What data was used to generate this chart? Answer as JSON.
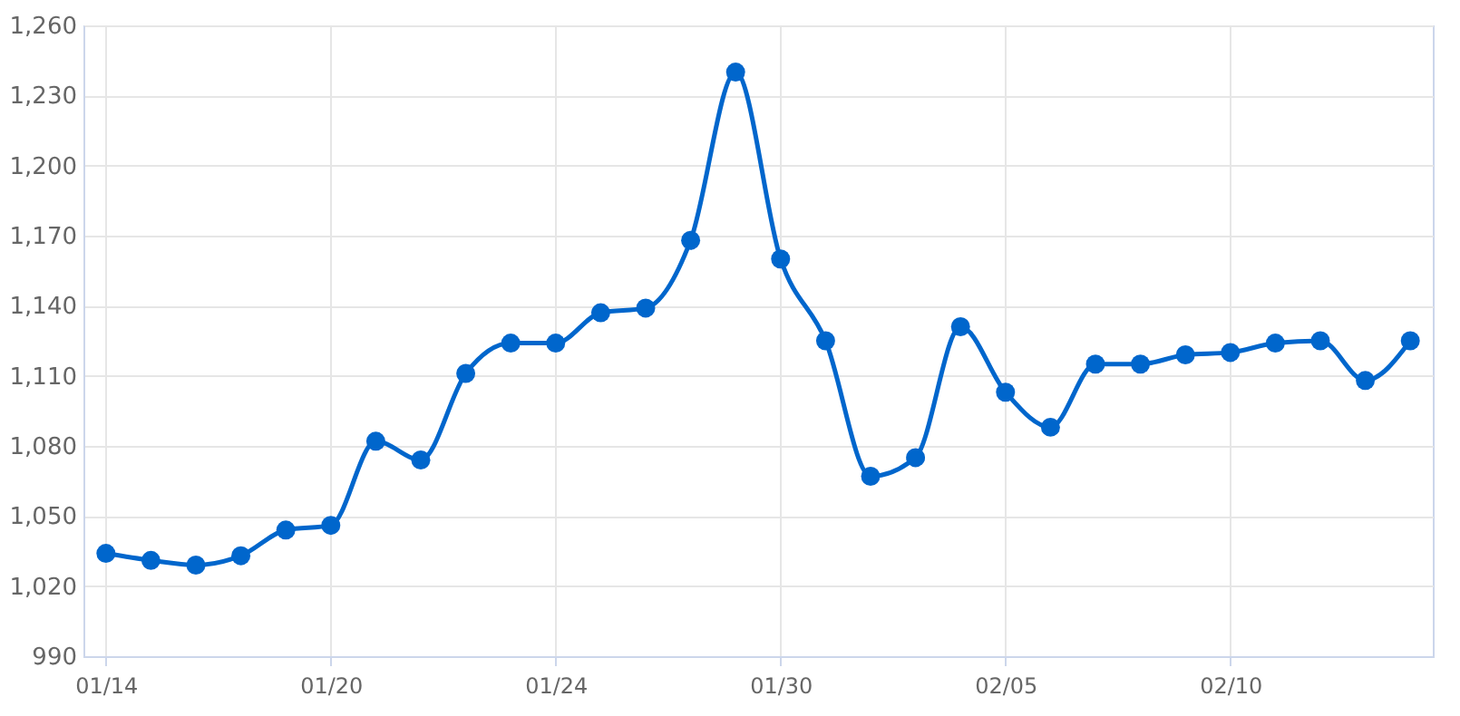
{
  "chart_data": {
    "type": "line",
    "categories": [
      "01/14",
      null,
      null,
      null,
      null,
      "01/20",
      null,
      null,
      null,
      null,
      "01/24",
      null,
      null,
      null,
      null,
      "01/30",
      null,
      null,
      null,
      null,
      "02/05",
      null,
      null,
      null,
      null,
      "02/10",
      null,
      null,
      null,
      null
    ],
    "series": [
      {
        "color": "#0066cc",
        "values": [
          1034,
          1031,
          1029,
          1033,
          1044,
          1046,
          1082,
          1074,
          1111,
          1124,
          1124,
          1137,
          1139,
          1168,
          1240,
          1160,
          1125,
          1067,
          1075,
          1131,
          1103,
          1088,
          1115,
          1115,
          1119,
          1120,
          1124,
          1125,
          1108,
          1125
        ]
      }
    ],
    "ylim": [
      990,
      1260
    ],
    "yticks": [
      990,
      {
        "value": 1020,
        "label": "1,020"
      },
      {
        "value": 1050,
        "label": "1,050"
      },
      {
        "value": 1080,
        "label": "1,080"
      },
      {
        "value": 1110,
        "label": "1,110"
      },
      {
        "value": 1140,
        "label": "1,140"
      },
      {
        "value": 1170,
        "label": "1,170"
      },
      {
        "value": 1200,
        "label": "1,200"
      },
      {
        "value": 1230,
        "label": "1,230"
      },
      {
        "value": 1260,
        "label": "1,260"
      }
    ],
    "grid": true,
    "marker": "circle",
    "line_style": "solid"
  }
}
